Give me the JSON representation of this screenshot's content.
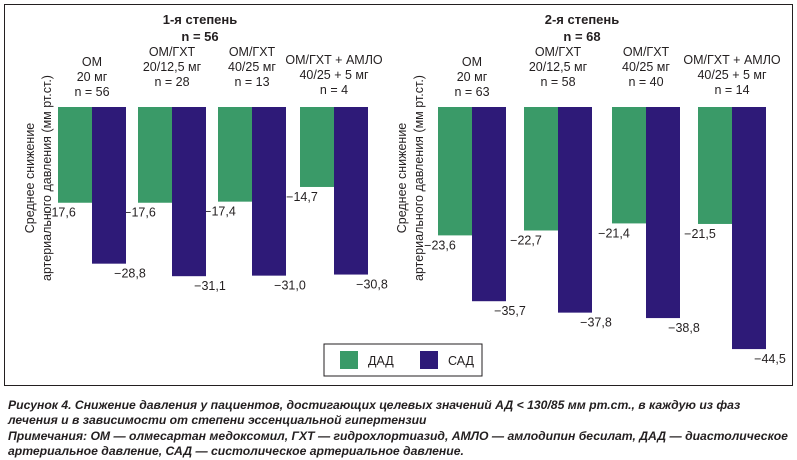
{
  "colors": {
    "dad": "#3a9a68",
    "sad": "#2e1a78",
    "text": "#231f20"
  },
  "legend": {
    "items": [
      {
        "label": "ДАД",
        "color": "#3a9a68"
      },
      {
        "label": "САД",
        "color": "#2e1a78"
      }
    ]
  },
  "chart_data": [
    {
      "type": "bar",
      "title": "1-я степень",
      "subtitle": "n = 56",
      "ylabel": "Среднее снижение артериального давления (мм рт.ст.)",
      "categories": [
        [
          "ОМ",
          "20 мг",
          "n = 56"
        ],
        [
          "ОМ/ГХТ",
          "20/12,5 мг",
          "n = 28"
        ],
        [
          "ОМ/ГХТ",
          "40/25 мг",
          "n = 13"
        ],
        [
          "ОМ/ГХТ + АМЛО",
          "40/25 + 5 мг",
          "n = 4"
        ]
      ],
      "series": [
        {
          "name": "ДАД",
          "values": [
            -17.6,
            -17.6,
            -17.4,
            -14.7
          ],
          "labels": [
            "−17,6",
            "−17,6",
            "−17,4",
            "−14,7"
          ]
        },
        {
          "name": "САД",
          "values": [
            -28.8,
            -31.1,
            -31.0,
            -30.8
          ],
          "labels": [
            "−28,8",
            "−31,1",
            "−31,0",
            "−30,8"
          ]
        }
      ]
    },
    {
      "type": "bar",
      "title": "2-я степень",
      "subtitle": "n = 68",
      "ylabel": "Среднее снижение артериального давления (мм рт.ст.)",
      "categories": [
        [
          "ОМ",
          "20 мг",
          "n = 63"
        ],
        [
          "ОМ/ГХТ",
          "20/12,5 мг",
          "n = 58"
        ],
        [
          "ОМ/ГХТ",
          "40/25 мг",
          "n = 40"
        ],
        [
          "ОМ/ГХТ + АМЛО",
          "40/25 + 5 мг",
          "n = 14"
        ]
      ],
      "series": [
        {
          "name": "ДАД",
          "values": [
            -23.6,
            -22.7,
            -21.4,
            -21.5
          ],
          "labels": [
            "−23,6",
            "−22,7",
            "−21,4",
            "−21,5"
          ]
        },
        {
          "name": "САД",
          "values": [
            -35.7,
            -37.8,
            -38.8,
            -44.5
          ],
          "labels": [
            "−35,7",
            "−37,8",
            "−38,8",
            "−44,5"
          ]
        }
      ]
    }
  ],
  "caption": {
    "figure": "Рисунок 4. Снижение давления у пациентов, достигающих целевых значений АД < 130/85 мм рт.ст., в каждую из фаз лечения и в зависимости от степени эссенциальной гипертензии",
    "notes": "Примечания: ОМ — олмесартан медоксомил, ГХТ — гидрохлортиазид, АМЛО — амлодипин бесилат, ДАД — диастолическое артериальное давление, САД — систолическое артериальное давление."
  }
}
